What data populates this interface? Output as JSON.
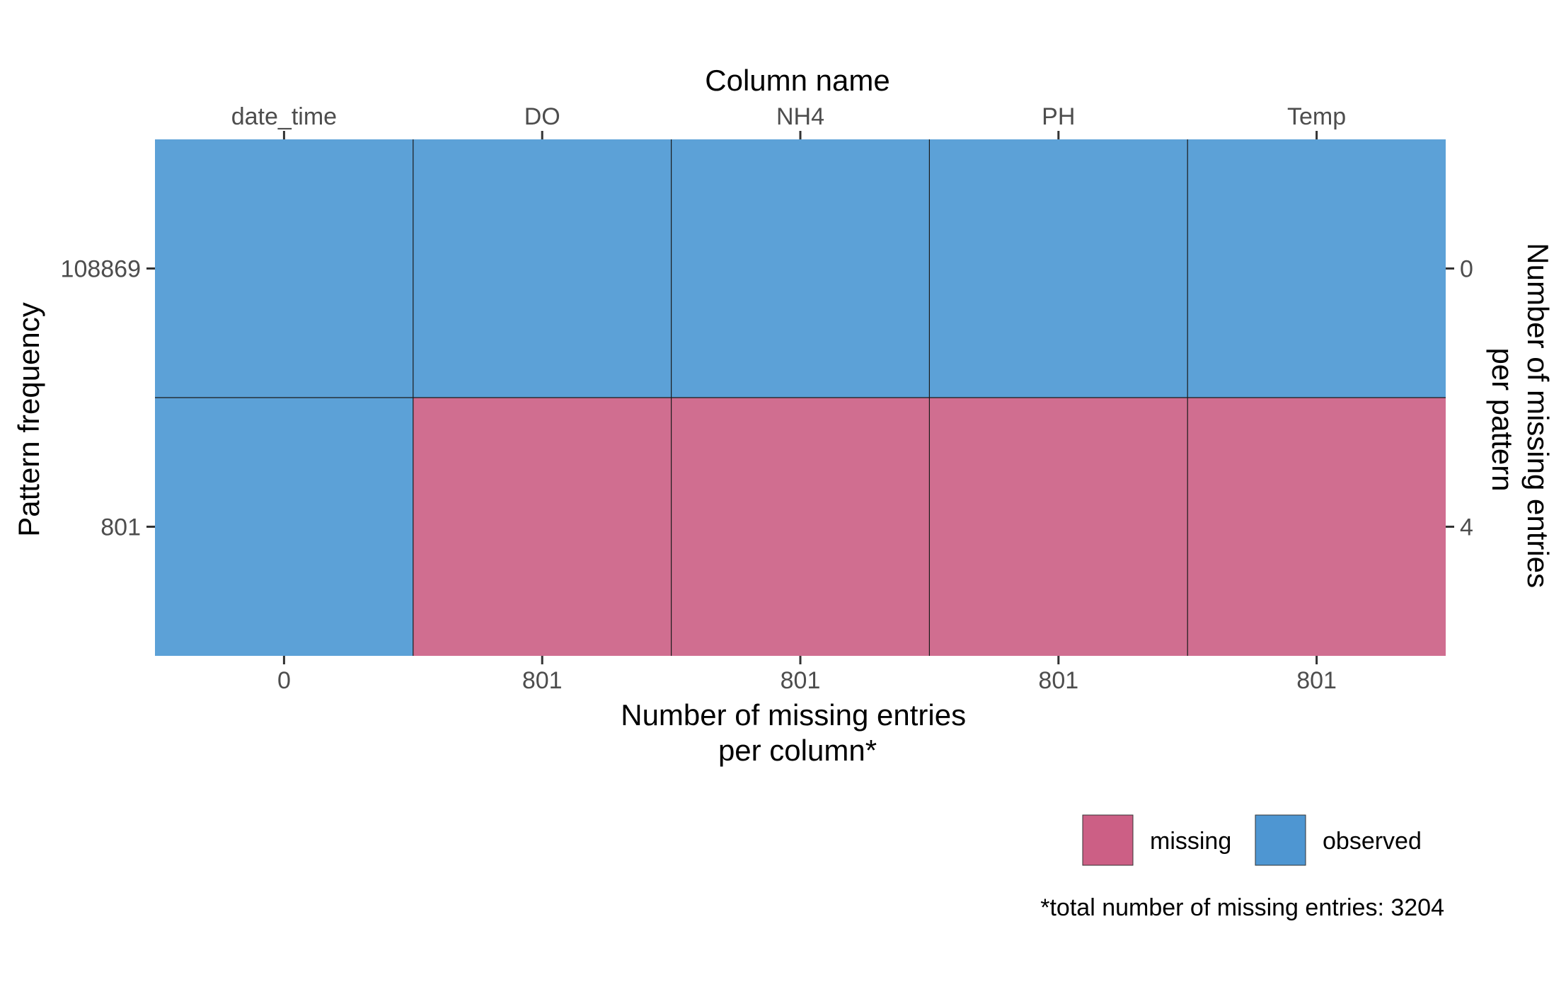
{
  "chart_data": {
    "type": "heatmap",
    "columns": [
      "date_time",
      "DO",
      "NH4",
      "PH",
      "Temp"
    ],
    "patterns": [
      {
        "frequency": "108869",
        "missing_per_pattern": "0",
        "cells": [
          "observed",
          "observed",
          "observed",
          "observed",
          "observed"
        ]
      },
      {
        "frequency": "801",
        "missing_per_pattern": "4",
        "cells": [
          "observed",
          "missing",
          "missing",
          "missing",
          "missing"
        ]
      }
    ],
    "missing_per_column": [
      "0",
      "801",
      "801",
      "801",
      "801"
    ],
    "top_axis_title": "Column name",
    "bottom_axis_title": [
      "Number of missing entries",
      "per column*"
    ],
    "left_axis_title": "Pattern frequency",
    "right_axis_title": [
      "Number of missing entries",
      "per pattern"
    ],
    "legend": {
      "position": "bottom-right",
      "entries": [
        {
          "key": "missing",
          "label": "missing",
          "color": "#cc5f85"
        },
        {
          "key": "observed",
          "label": "observed",
          "color": "#4e96d2"
        }
      ]
    },
    "caption": "*total number of missing entries: 3204",
    "colors": {
      "missing_cell": "#d06e90",
      "observed_cell": "#5ca1d7",
      "outline": "#1a1a1a"
    }
  }
}
